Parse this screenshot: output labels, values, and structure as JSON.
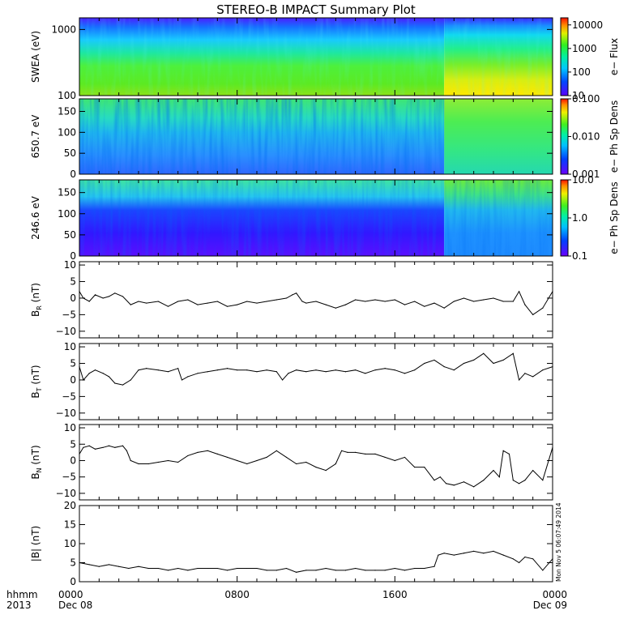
{
  "title": "STEREO-B IMPACT Summary Plot",
  "stamp": "Mon Nov  5 06:07:49 2014",
  "time_axis": {
    "corner_label_1": "hhmm",
    "corner_label_2": "2013",
    "ticks": [
      {
        "hours": 0,
        "time": "0000",
        "date": "Dec 08"
      },
      {
        "hours": 8,
        "time": "0800",
        "date": ""
      },
      {
        "hours": 16,
        "time": "1600",
        "date": ""
      },
      {
        "hours": 24,
        "time": "0000",
        "date": "Dec 09"
      }
    ]
  },
  "chart_data": [
    {
      "type": "heatmap",
      "id": "swea",
      "ylabel": "SWEA (eV)",
      "scale": "log",
      "ylim": [
        100,
        1500
      ],
      "yticks": [
        100,
        1000
      ],
      "ytick_labels": [
        "100",
        "1000"
      ],
      "colorbar": {
        "label": "e− Flux",
        "scale": "log",
        "range": [
          10,
          20000
        ],
        "ticks": [
          10,
          100,
          1000,
          10000
        ],
        "tick_labels": [
          "10",
          "100",
          "1000",
          "10000"
        ]
      },
      "grid": false
    },
    {
      "type": "heatmap",
      "id": "pad650",
      "ylabel": "650.7 eV",
      "scale": "linear",
      "ylim": [
        0,
        180
      ],
      "yticks": [
        0,
        50,
        100,
        150
      ],
      "ytick_labels": [
        "0",
        "50",
        "100",
        "150"
      ],
      "colorbar": {
        "label": "e− Ph Sp Dens",
        "scale": "log",
        "range": [
          0.001,
          0.1
        ],
        "ticks": [
          0.001,
          0.01,
          0.1
        ],
        "tick_labels": [
          "0.001",
          "0.010",
          "0.100"
        ]
      },
      "grid": false
    },
    {
      "type": "heatmap",
      "id": "pad246",
      "ylabel": "246.6 eV",
      "scale": "linear",
      "ylim": [
        0,
        180
      ],
      "yticks": [
        0,
        50,
        100,
        150
      ],
      "ytick_labels": [
        "0",
        "50",
        "100",
        "150"
      ],
      "colorbar": {
        "label": "e− Ph Sp Dens",
        "scale": "log",
        "range": [
          0.1,
          10
        ],
        "ticks": [
          0.1,
          1,
          10
        ],
        "tick_labels": [
          "0.1",
          "1.0",
          "10.0"
        ]
      },
      "grid": false
    },
    {
      "type": "line",
      "id": "br",
      "ylabel": "B",
      "ylabel_sub": "R",
      "ylabel_unit": " (nT)",
      "ylim": [
        -12,
        11
      ],
      "yticks": [
        -10,
        -5,
        0,
        5,
        10
      ],
      "ytick_labels": [
        "−10",
        "−5",
        "0",
        "5",
        "10"
      ],
      "x_hours": [
        0,
        0.2,
        0.5,
        0.8,
        1.2,
        1.5,
        1.8,
        2.2,
        2.6,
        3.0,
        3.4,
        4.0,
        4.5,
        5.0,
        5.5,
        6.0,
        6.5,
        7.0,
        7.5,
        8.0,
        8.5,
        9.0,
        9.5,
        10.0,
        10.5,
        10.8,
        11.0,
        11.3,
        11.5,
        12.0,
        12.5,
        13.0,
        13.5,
        14.0,
        14.5,
        15.0,
        15.5,
        16.0,
        16.5,
        17.0,
        17.5,
        18.0,
        18.5,
        19.0,
        19.5,
        20.0,
        20.5,
        21.0,
        21.5,
        22.0,
        22.3,
        22.6,
        23.0,
        23.5,
        24.0
      ],
      "values": [
        2,
        0,
        -1,
        1,
        0,
        0.5,
        1.5,
        0.5,
        -2,
        -1,
        -1.5,
        -1,
        -2.5,
        -1,
        -0.5,
        -2,
        -1.5,
        -1,
        -2.5,
        -2,
        -1,
        -1.5,
        -1,
        -0.5,
        0,
        1,
        1.5,
        -1,
        -1.5,
        -1,
        -2,
        -3,
        -2,
        -0.5,
        -1,
        -0.5,
        -1,
        -0.5,
        -2,
        -1,
        -2.5,
        -1.5,
        -3,
        -1,
        0,
        -1,
        -0.5,
        0,
        -1,
        -1,
        2,
        -2,
        -5,
        -3,
        2
      ],
      "grid": false
    },
    {
      "type": "line",
      "id": "bt",
      "ylabel": "B",
      "ylabel_sub": "T",
      "ylabel_unit": " (nT)",
      "ylim": [
        -12,
        11
      ],
      "yticks": [
        -10,
        -5,
        0,
        5,
        10
      ],
      "ytick_labels": [
        "−10",
        "−5",
        "0",
        "5",
        "10"
      ],
      "x_hours": [
        0,
        0.2,
        0.5,
        0.8,
        1.2,
        1.5,
        1.8,
        2.2,
        2.6,
        3.0,
        3.4,
        4.0,
        4.5,
        5.0,
        5.2,
        5.5,
        6.0,
        6.5,
        7.0,
        7.5,
        8.0,
        8.5,
        9.0,
        9.5,
        10.0,
        10.3,
        10.6,
        11.0,
        11.5,
        12.0,
        12.5,
        13.0,
        13.5,
        14.0,
        14.5,
        15.0,
        15.5,
        16.0,
        16.5,
        17.0,
        17.5,
        18.0,
        18.5,
        19.0,
        19.5,
        20.0,
        20.5,
        21.0,
        21.5,
        22.0,
        22.3,
        22.6,
        23.0,
        23.5,
        24.0
      ],
      "values": [
        4,
        0,
        2,
        3,
        2,
        1,
        -1,
        -1.5,
        0,
        3,
        3.5,
        3,
        2.5,
        3.5,
        0,
        1,
        2,
        2.5,
        3,
        3.5,
        3,
        3,
        2.5,
        3,
        2.5,
        0,
        2,
        3,
        2.5,
        3,
        2.5,
        3,
        2.5,
        3,
        2,
        3,
        3.5,
        3,
        2,
        3,
        5,
        6,
        4,
        3,
        5,
        6,
        8,
        5,
        6,
        8,
        0,
        2,
        1,
        3,
        4
      ],
      "grid": false
    },
    {
      "type": "line",
      "id": "bn",
      "ylabel": "B",
      "ylabel_sub": "N",
      "ylabel_unit": " (nT)",
      "ylim": [
        -12,
        11
      ],
      "yticks": [
        -10,
        -5,
        0,
        5,
        10
      ],
      "ytick_labels": [
        "−10",
        "−5",
        "0",
        "5",
        "10"
      ],
      "x_hours": [
        0,
        0.2,
        0.5,
        0.8,
        1.2,
        1.5,
        1.8,
        2.2,
        2.4,
        2.6,
        3.0,
        3.5,
        4.0,
        4.5,
        5.0,
        5.5,
        6.0,
        6.5,
        7.0,
        7.5,
        8.0,
        8.5,
        9.0,
        9.5,
        10.0,
        10.5,
        11.0,
        11.5,
        12.0,
        12.5,
        13.0,
        13.3,
        13.6,
        14.0,
        14.5,
        15.0,
        15.5,
        16.0,
        16.5,
        17.0,
        17.5,
        18.0,
        18.3,
        18.6,
        19.0,
        19.5,
        20.0,
        20.5,
        21.0,
        21.3,
        21.5,
        21.8,
        22.0,
        22.3,
        22.6,
        23.0,
        23.5,
        24.0
      ],
      "values": [
        2,
        4,
        4.5,
        3.5,
        4,
        4.5,
        4,
        4.5,
        3,
        0,
        -1,
        -1,
        -0.5,
        0,
        -0.5,
        1.5,
        2.5,
        3,
        2,
        1,
        0,
        -1,
        0,
        1,
        3,
        1,
        -1,
        -0.5,
        -2,
        -3,
        -1,
        3,
        2.5,
        2.5,
        2,
        2,
        1,
        0,
        1,
        -2,
        -2,
        -6,
        -5,
        -7,
        -7.5,
        -6.5,
        -8,
        -6,
        -3,
        -5,
        3,
        2,
        -6,
        -7,
        -6,
        -3,
        -6,
        4
      ],
      "grid": false
    },
    {
      "type": "line",
      "id": "bmag",
      "ylabel": "|B|",
      "ylabel_sub": "",
      "ylabel_unit": " (nT)",
      "ylim": [
        0,
        20
      ],
      "yticks": [
        0,
        5,
        10,
        15,
        20
      ],
      "ytick_labels": [
        "0",
        "5",
        "10",
        "15",
        "20"
      ],
      "x_hours": [
        0,
        0.5,
        1.0,
        1.5,
        2.0,
        2.5,
        3.0,
        3.5,
        4.0,
        4.5,
        5.0,
        5.5,
        6.0,
        6.5,
        7.0,
        7.5,
        8.0,
        8.5,
        9.0,
        9.5,
        10.0,
        10.5,
        11.0,
        11.5,
        12.0,
        12.5,
        13.0,
        13.5,
        14.0,
        14.5,
        15.0,
        15.5,
        16.0,
        16.5,
        17.0,
        17.5,
        18.0,
        18.2,
        18.5,
        19.0,
        19.5,
        20.0,
        20.5,
        21.0,
        21.5,
        22.0,
        22.3,
        22.6,
        23.0,
        23.5,
        24.0
      ],
      "values": [
        5,
        4.5,
        4,
        4.5,
        4,
        3.5,
        4,
        3.5,
        3.5,
        3,
        3.5,
        3,
        3.5,
        3.5,
        3.5,
        3,
        3.5,
        3.5,
        3.5,
        3,
        3,
        3.5,
        2.5,
        3,
        3,
        3.5,
        3,
        3,
        3.5,
        3,
        3,
        3,
        3.5,
        3,
        3.5,
        3.5,
        4,
        7,
        7.5,
        7,
        7.5,
        8,
        7.5,
        8,
        7,
        6,
        5,
        6.5,
        6,
        3,
        6
      ],
      "grid": false
    }
  ]
}
